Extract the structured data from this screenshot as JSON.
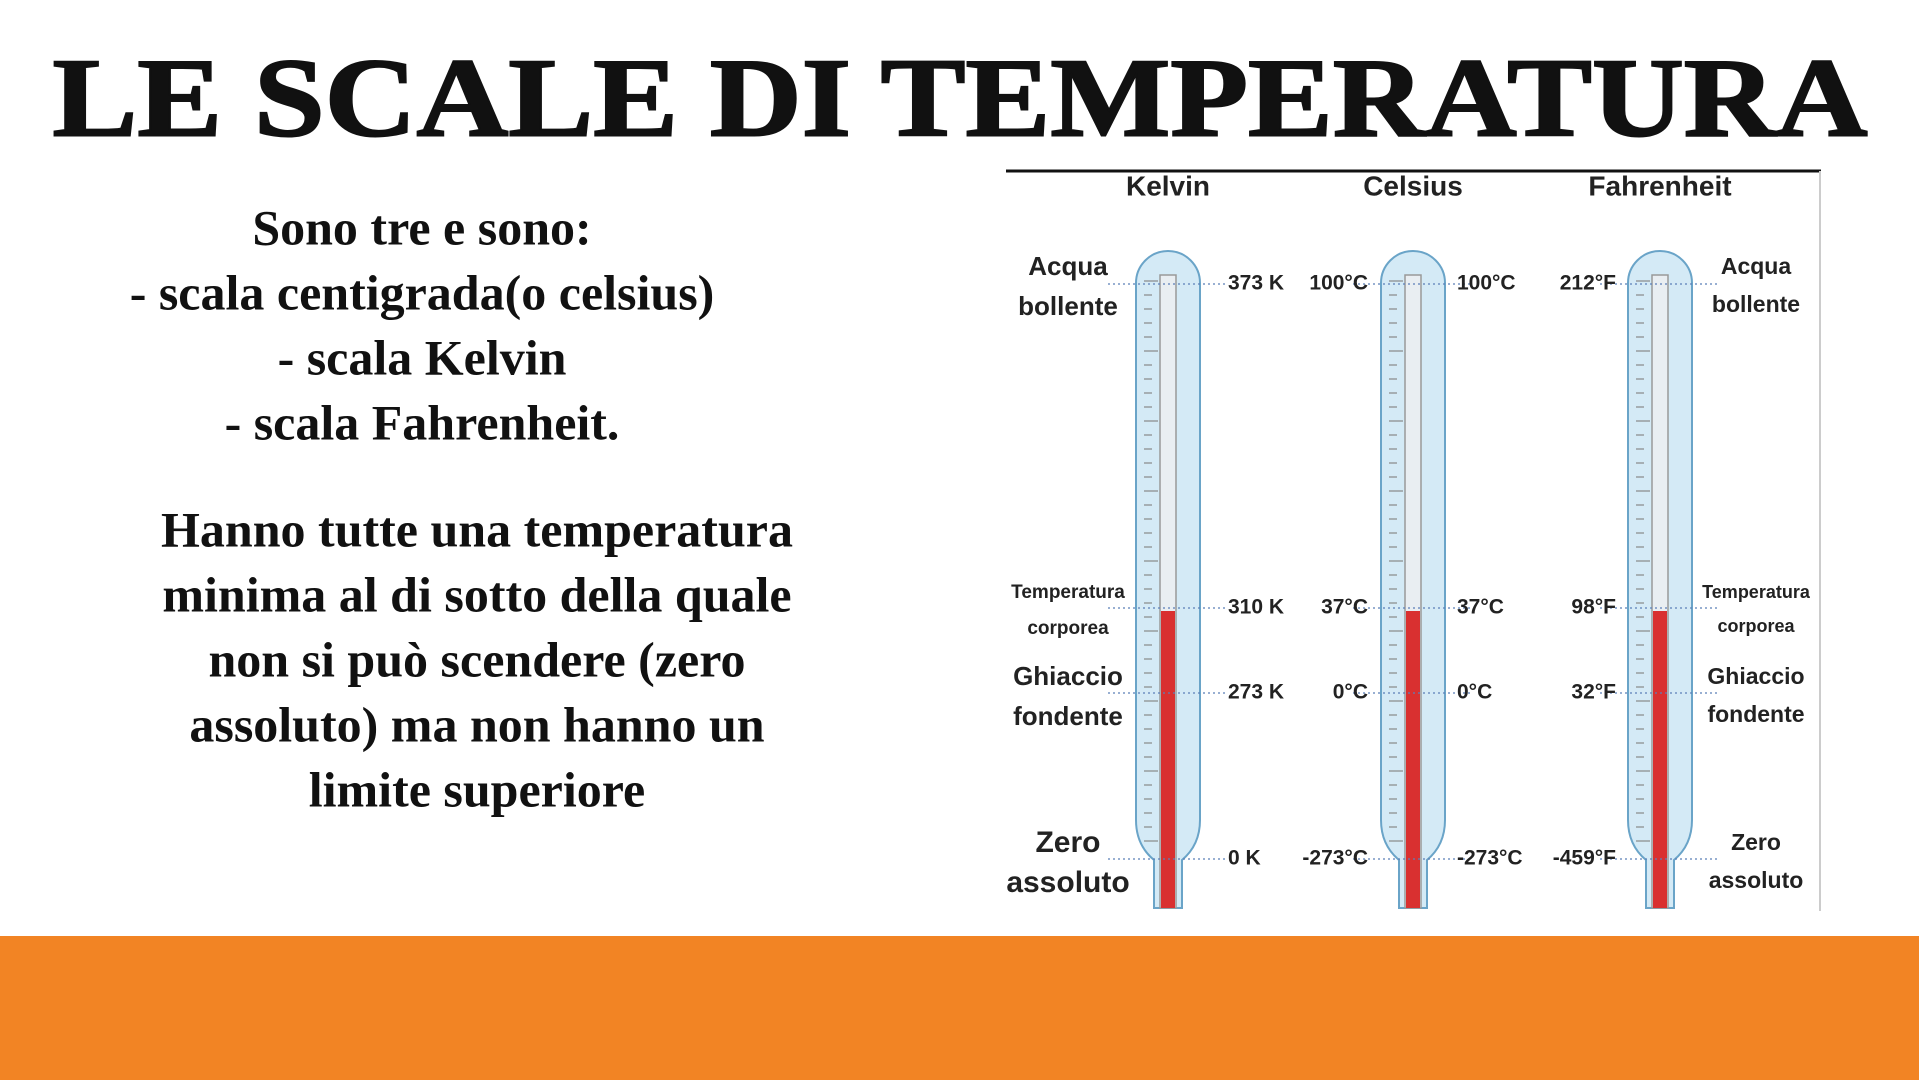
{
  "title": "LE SCALE DI TEMPERATURA",
  "intro": [
    "Sono tre e sono:",
    "- scala centigrada(o celsius)",
    "- scala Kelvin",
    "- scala Fahrenheit."
  ],
  "paragraph": [
    "Hanno tutte una temperatura",
    "minima al di sotto della quale",
    "non si può scendere (zero",
    "assoluto) ma non hanno un",
    "limite superiore"
  ],
  "diagram": {
    "headings": [
      "Kelvin",
      "Celsius",
      "Fahrenheit"
    ],
    "reference_points": [
      {
        "label_lines": [
          "Acqua",
          "bollente"
        ],
        "kelvin": "373 K",
        "celsius": "100°C",
        "fahrenheit": "212°F"
      },
      {
        "label_lines": [
          "Temperatura",
          "corporea"
        ],
        "kelvin": "310 K",
        "celsius": "37°C",
        "fahrenheit": "98°F"
      },
      {
        "label_lines": [
          "Ghiaccio",
          "fondente"
        ],
        "kelvin": "273 K",
        "celsius": "0°C",
        "fahrenheit": "32°F"
      },
      {
        "label_lines": [
          "Zero",
          "assoluto"
        ],
        "kelvin": "0 K",
        "celsius": "-273°C",
        "fahrenheit": "-459°F"
      }
    ]
  }
}
